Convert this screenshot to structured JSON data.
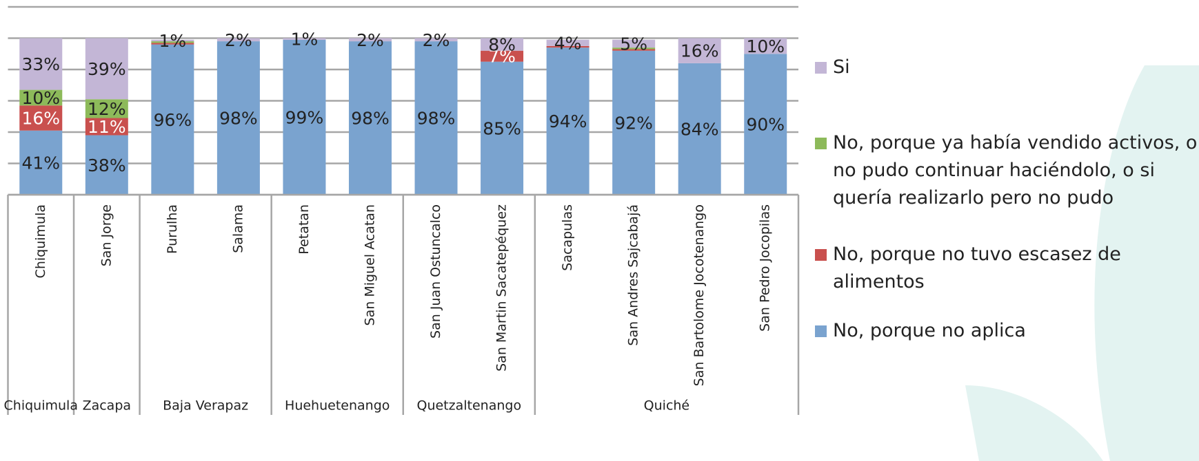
{
  "chart_data": {
    "type": "stacked-bar",
    "categories": [
      "Chiquimula",
      "San Jorge",
      "Purulha",
      "Salama",
      "Petatan",
      "San Miguel Acatan",
      "San Juan Ostuncalco",
      "San Martin Sacatepéquez",
      "Sacapulas",
      "San Andres Sajcabajá",
      "San Bartolome Jocotenango",
      "San Pedro Jocopilas"
    ],
    "groups": [
      {
        "name": "Chiquimula",
        "count": 1
      },
      {
        "name": "Zacapa",
        "count": 1
      },
      {
        "name": "Baja Verapaz",
        "count": 2
      },
      {
        "name": "Huehuetenango",
        "count": 2
      },
      {
        "name": "Quetzaltenango",
        "count": 2
      },
      {
        "name": "Quiché",
        "count": 4
      }
    ],
    "series": [
      {
        "name": "No, porque no aplica",
        "color": "#7aa3cf",
        "label_color": "#222222",
        "values": [
          41,
          38,
          96,
          98,
          99,
          98,
          98,
          85,
          94,
          92,
          84,
          90
        ],
        "value_labels": [
          "41%",
          "38%",
          "96%",
          "98%",
          "99%",
          "98%",
          "98%",
          "85%",
          "94%",
          "92%",
          "84%",
          "90%"
        ]
      },
      {
        "name": "No, porque no tuvo escasez de alimentos",
        "color": "#c9504e",
        "label_color": "#ffffff",
        "values": [
          16,
          11,
          1,
          0,
          0,
          0,
          0,
          7,
          1,
          1,
          0,
          0
        ],
        "value_labels": [
          "16%",
          "11%",
          null,
          null,
          null,
          null,
          null,
          "7%",
          null,
          null,
          null,
          null
        ]
      },
      {
        "name": "No, porque ya había vendido activos, o no pudo continuar haciéndolo, o si quería realizarlo pero no pudo",
        "color": "#8dba5a",
        "label_color": "#222222",
        "values": [
          10,
          12,
          1,
          0,
          0,
          0,
          0,
          0,
          0,
          1,
          0,
          0
        ],
        "value_labels": [
          "10%",
          "12%",
          null,
          null,
          null,
          null,
          null,
          null,
          null,
          null,
          null,
          null
        ]
      },
      {
        "name": "Si",
        "color": "#c3b6d6",
        "label_color": "#222222",
        "values": [
          33,
          39,
          1,
          2,
          1,
          2,
          2,
          8,
          4,
          5,
          16,
          10
        ],
        "value_labels": [
          "33%",
          "39%",
          "1%",
          "2%",
          "1%",
          "2%",
          "2%",
          "8%",
          "4%",
          "5%",
          "16%",
          "10%"
        ]
      }
    ],
    "ylim": [
      0,
      120
    ],
    "yticks": [
      0,
      20,
      40,
      60,
      80,
      100,
      120
    ],
    "grid": true
  }
}
